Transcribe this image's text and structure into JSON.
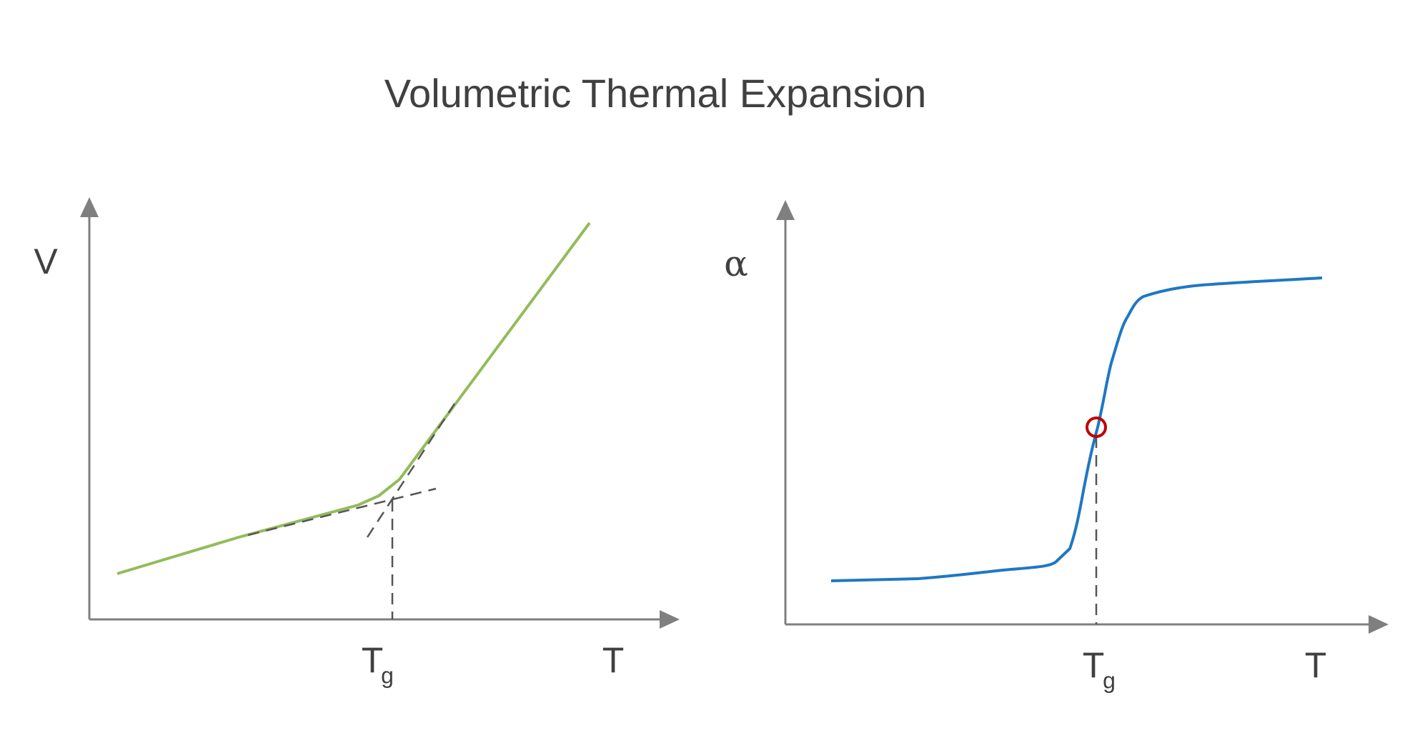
{
  "title": "Volumetric Thermal Expansion",
  "panels": [
    {
      "y_label": "V",
      "x_label": "T",
      "marker_label": {
        "main": "T",
        "sub": "g"
      }
    },
    {
      "y_label": "α",
      "x_label": "T",
      "marker_label": {
        "main": "T",
        "sub": "g"
      }
    }
  ]
}
